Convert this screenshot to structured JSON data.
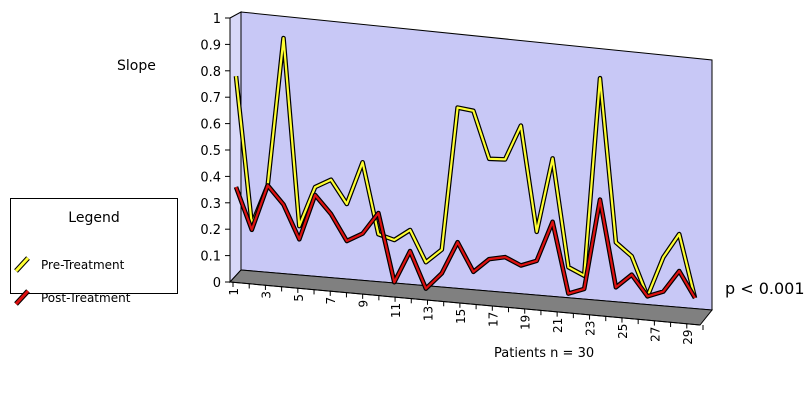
{
  "chart_data": {
    "type": "line",
    "title": "",
    "ylabel": "Slope",
    "xlabel": "Patients n = 30",
    "annotation": "p < 0.001",
    "ylim": [
      0,
      1
    ],
    "y_ticks": [
      "0",
      "0.1",
      "0.2",
      "0.3",
      "0.4",
      "0.5",
      "0.6",
      "0.7",
      "0.8",
      "0.9",
      "1"
    ],
    "x": [
      1,
      2,
      3,
      4,
      5,
      6,
      7,
      8,
      9,
      10,
      11,
      12,
      13,
      14,
      15,
      16,
      17,
      18,
      19,
      20,
      21,
      22,
      23,
      24,
      25,
      26,
      27,
      28,
      29,
      30
    ],
    "x_tick_labels": [
      "1",
      "3",
      "5",
      "7",
      "9",
      "11",
      "13",
      "15",
      "17",
      "19",
      "21",
      "23",
      "25",
      "27",
      "29"
    ],
    "series": [
      {
        "name": "Pre-Treatment",
        "color": "#ffff33",
        "values": [
          0.78,
          0.22,
          0.37,
          0.93,
          0.22,
          0.37,
          0.4,
          0.31,
          0.47,
          0.2,
          0.18,
          0.22,
          0.1,
          0.15,
          0.69,
          0.68,
          0.5,
          0.5,
          0.63,
          0.23,
          0.51,
          0.1,
          0.07,
          0.82,
          0.2,
          0.15,
          0.0,
          0.15,
          0.24,
          0.0
        ]
      },
      {
        "name": "Post-Treatment",
        "color": "#dd1111",
        "values": [
          0.36,
          0.2,
          0.37,
          0.3,
          0.17,
          0.34,
          0.27,
          0.17,
          0.2,
          0.28,
          0.02,
          0.14,
          0.0,
          0.06,
          0.18,
          0.07,
          0.12,
          0.13,
          0.1,
          0.12,
          0.27,
          0.0,
          0.02,
          0.36,
          0.03,
          0.08,
          0.0,
          0.02,
          0.1,
          0.0
        ]
      }
    ],
    "grid": false,
    "legend_position": "left"
  },
  "legend": {
    "title": "Legend",
    "entries": [
      "Pre-Treatment",
      "Post-Treatment"
    ]
  },
  "colors": {
    "wall": "#c8c8f6",
    "floor": "#808080",
    "outline": "#000000"
  }
}
